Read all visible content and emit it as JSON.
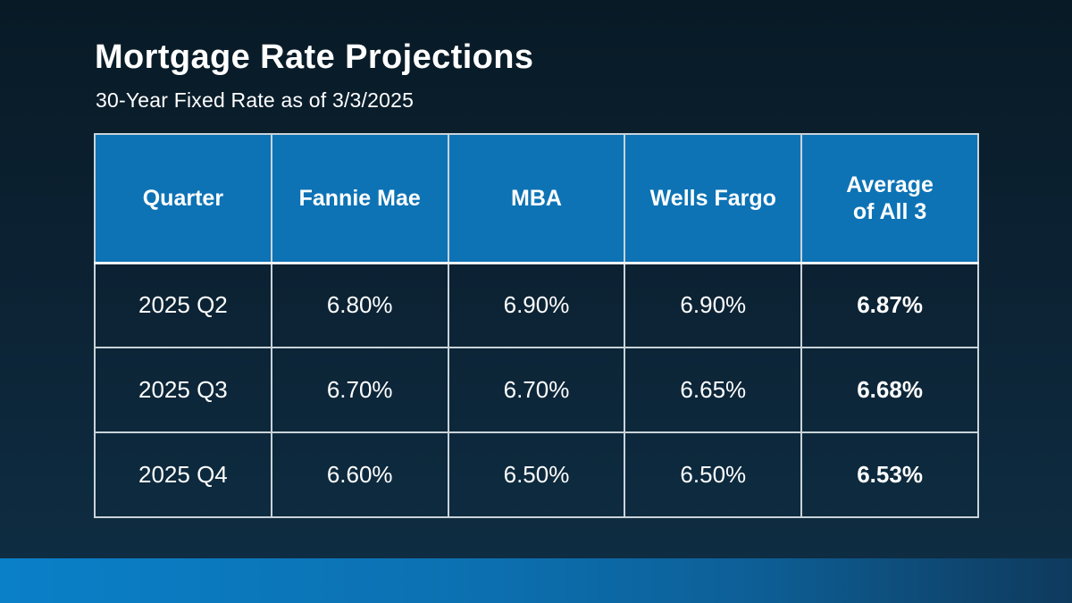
{
  "slide": {
    "title": "Mortgage Rate Projections",
    "subtitle": "30-Year Fixed Rate as of 3/3/2025"
  },
  "table": {
    "headers": [
      "Quarter",
      "Fannie Mae",
      "MBA",
      "Wells Fargo"
    ],
    "header_average": {
      "line1": "Average",
      "line2": "of All 3"
    },
    "rows": [
      [
        "2025 Q2",
        "6.80%",
        "6.90%",
        "6.90%",
        "6.87%"
      ],
      [
        "2025 Q3",
        "6.70%",
        "6.70%",
        "6.65%",
        "6.68%"
      ],
      [
        "2025 Q4",
        "6.60%",
        "6.50%",
        "6.50%",
        "6.53%"
      ]
    ]
  },
  "colors": {
    "background_top": "#081a26",
    "background_mid": "#0c2233",
    "background_bottom": "#0e2e44",
    "header_blue": "#0d73b5",
    "border": "#c9d3da",
    "border_strong": "#eef3f6",
    "footer_left": "#0a80c8",
    "footer_mid": "#0c70b0",
    "footer_right": "#0e3a5d",
    "text_white": "#ffffff"
  },
  "chart_data": {
    "type": "table",
    "title": "Mortgage Rate Projections",
    "subtitle": "30-Year Fixed Rate as of 3/3/2025",
    "columns": [
      "Quarter",
      "Fannie Mae",
      "MBA",
      "Wells Fargo",
      "Average of All 3"
    ],
    "rows": [
      [
        "2025 Q2",
        "6.80%",
        "6.90%",
        "6.90%",
        "6.87%"
      ],
      [
        "2025 Q3",
        "6.70%",
        "6.70%",
        "6.65%",
        "6.68%"
      ],
      [
        "2025 Q4",
        "6.60%",
        "6.50%",
        "6.50%",
        "6.53%"
      ]
    ],
    "series": [
      {
        "name": "Fannie Mae",
        "values": [
          6.8,
          6.7,
          6.6
        ]
      },
      {
        "name": "MBA",
        "values": [
          6.9,
          6.7,
          6.5
        ]
      },
      {
        "name": "Wells Fargo",
        "values": [
          6.9,
          6.65,
          6.5
        ]
      },
      {
        "name": "Average of All 3",
        "values": [
          6.87,
          6.68,
          6.53
        ]
      }
    ],
    "categories": [
      "2025 Q2",
      "2025 Q3",
      "2025 Q4"
    ],
    "unit": "%",
    "notes": "Highlight styling: Average column values are bold"
  }
}
